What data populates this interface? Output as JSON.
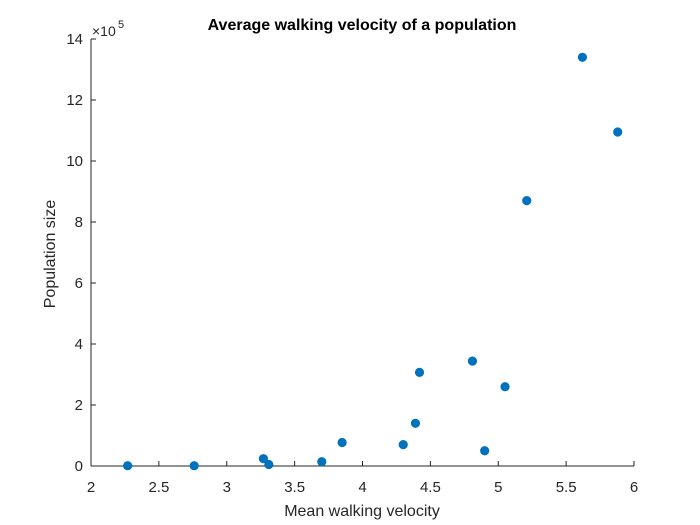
{
  "chart_data": {
    "type": "scatter",
    "title": "Average walking velocity of a population",
    "xlabel": "Mean walking velocity",
    "ylabel": "Population size",
    "xlim": [
      2,
      6
    ],
    "ylim": [
      0,
      14
    ],
    "y_exponent_label": "×10",
    "y_exponent_power": "5",
    "xticks": [
      "2",
      "2.5",
      "3",
      "3.5",
      "4",
      "4.5",
      "5",
      "5.5",
      "6"
    ],
    "yticks": [
      "0",
      "2",
      "4",
      "6",
      "8",
      "10",
      "12",
      "14"
    ],
    "marker_color": "#0072bd",
    "axis_color": "#262626",
    "series": [
      {
        "name": "population",
        "x": [
          2.27,
          2.76,
          3.27,
          3.31,
          3.7,
          3.85,
          4.3,
          4.39,
          4.42,
          4.81,
          4.9,
          5.05,
          5.21,
          5.62,
          5.88
        ],
        "y": [
          0.01,
          0.01,
          0.24,
          0.05,
          0.14,
          0.77,
          0.7,
          1.4,
          3.07,
          3.44,
          0.5,
          2.6,
          8.7,
          13.4,
          10.95
        ]
      }
    ]
  }
}
